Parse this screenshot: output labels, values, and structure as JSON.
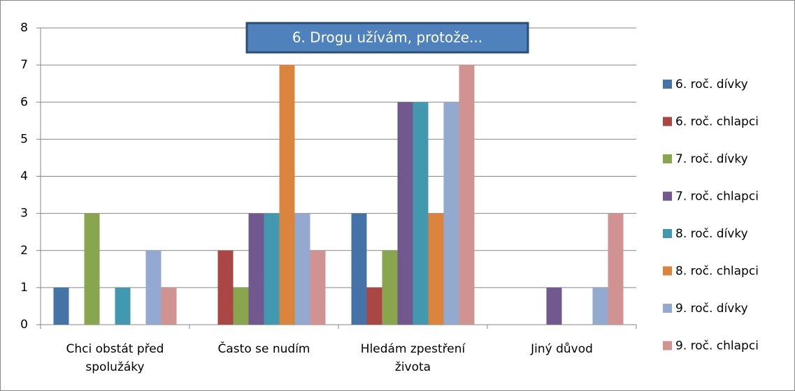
{
  "chart_data": {
    "type": "bar",
    "title": "6. Drogu užívám, protože...",
    "categories": [
      "Chci obstát před spolužáky",
      "Často se nudím",
      "Hledám zpestření života",
      "Jiný důvod"
    ],
    "series": [
      {
        "name": "6. roč. dívky",
        "color": "#4572a7",
        "values": [
          1,
          0,
          3,
          0
        ]
      },
      {
        "name": "6. roč. chlapci",
        "color": "#aa4643",
        "values": [
          0,
          2,
          1,
          0
        ]
      },
      {
        "name": "7. roč. dívky",
        "color": "#89a54e",
        "values": [
          3,
          1,
          2,
          0
        ]
      },
      {
        "name": "7. roč. chlapci",
        "color": "#71588f",
        "values": [
          0,
          3,
          6,
          1
        ]
      },
      {
        "name": "8. roč. dívky",
        "color": "#4198af",
        "values": [
          1,
          3,
          6,
          0
        ]
      },
      {
        "name": "8. roč. chlapci",
        "color": "#db843d",
        "values": [
          0,
          7,
          3,
          0
        ]
      },
      {
        "name": "9. roč. dívky",
        "color": "#93a9cf",
        "values": [
          2,
          3,
          6,
          1
        ]
      },
      {
        "name": "9. roč. chlapci",
        "color": "#d19392",
        "values": [
          1,
          2,
          7,
          3
        ]
      }
    ],
    "ylim": [
      0,
      8
    ],
    "yticks": [
      0,
      1,
      2,
      3,
      4,
      5,
      6,
      7,
      8
    ],
    "grid": true,
    "legend": "right"
  }
}
